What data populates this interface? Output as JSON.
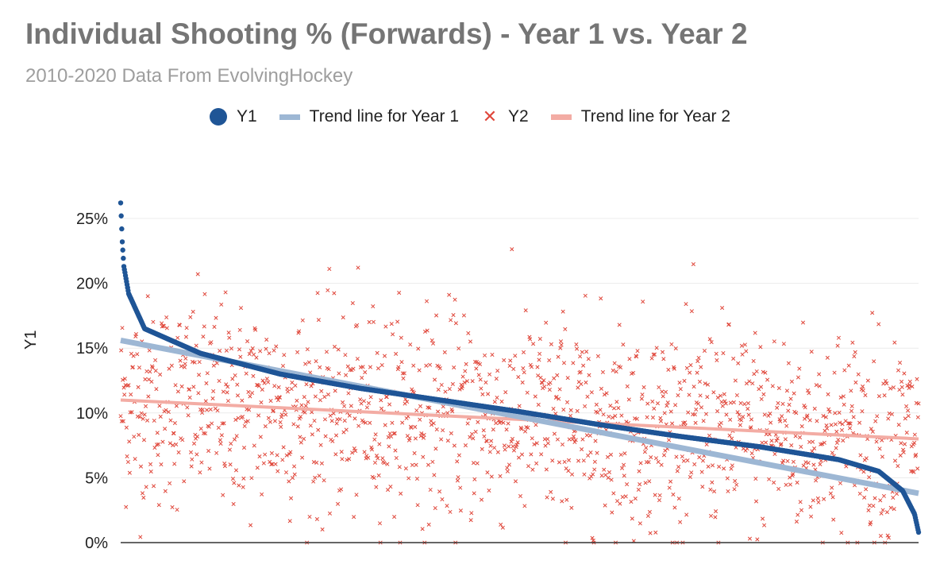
{
  "colors": {
    "y1": "#1f5596",
    "y1_trend": "#9db7d4",
    "y2": "#e0483c",
    "y2_trend": "#f3aca4"
  },
  "chart_data": {
    "type": "scatter",
    "title": "Individual Shooting % (Forwards) - Year 1 vs. Year 2",
    "subtitle": "2010-2020 Data From EvolvingHockey",
    "ylabel": "Y1",
    "xlabel": "",
    "ylim": [
      0,
      0.27
    ],
    "y_ticks": [
      0,
      0.05,
      0.1,
      0.15,
      0.2,
      0.25
    ],
    "y_tick_labels": [
      "0%",
      "5%",
      "10%",
      "15%",
      "20%",
      "25%"
    ],
    "grid": true,
    "legend_position": "top",
    "n_players": 1500,
    "series": [
      {
        "key": "y1",
        "name": "Y1",
        "marker": "circle",
        "note_sorted_descending": true,
        "profile": [
          [
            0.0,
            0.262
          ],
          [
            0.002,
            0.232
          ],
          [
            0.004,
            0.213
          ],
          [
            0.01,
            0.192
          ],
          [
            0.03,
            0.165
          ],
          [
            0.1,
            0.146
          ],
          [
            0.2,
            0.13
          ],
          [
            0.3,
            0.119
          ],
          [
            0.4,
            0.11
          ],
          [
            0.5,
            0.101
          ],
          [
            0.6,
            0.091
          ],
          [
            0.7,
            0.082
          ],
          [
            0.8,
            0.074
          ],
          [
            0.9,
            0.064
          ],
          [
            0.95,
            0.055
          ],
          [
            0.98,
            0.04
          ],
          [
            0.995,
            0.022
          ],
          [
            1.0,
            0.008
          ]
        ]
      },
      {
        "key": "trend1",
        "name": "Trend line for Year 1",
        "type": "line",
        "y_start": 0.156,
        "y_end": 0.038
      },
      {
        "key": "y2",
        "name": "Y2",
        "marker": "x",
        "mean_start": 0.11,
        "mean_end": 0.08,
        "spread": 0.04,
        "range": [
          0.0,
          0.26
        ]
      },
      {
        "key": "trend2",
        "name": "Trend line for Year 2",
        "type": "line",
        "y_start": 0.11,
        "y_end": 0.08
      }
    ]
  }
}
